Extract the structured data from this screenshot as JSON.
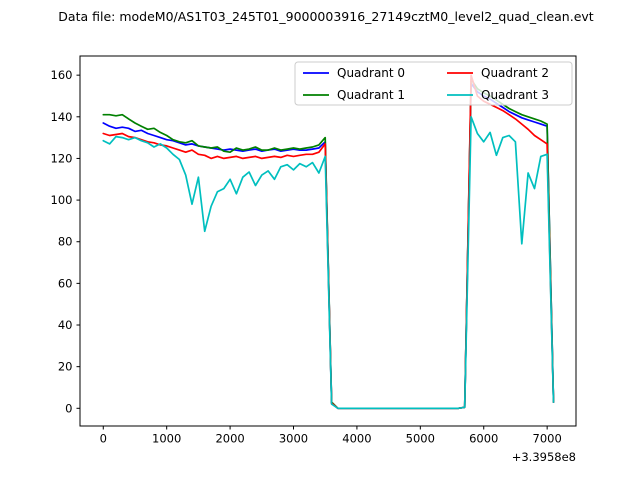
{
  "chart_data": {
    "type": "line",
    "title": "Data file: modeM0/AS1T03_245T01_9000003916_27149cztM0_level2_quad_clean.evt",
    "xlabel": "",
    "ylabel": "",
    "x_offset_label": "+3.3958e8",
    "xlim": [
      -367,
      7455
    ],
    "ylim": [
      -8.5,
      169.2
    ],
    "xticks": [
      0,
      1000,
      2000,
      3000,
      4000,
      5000,
      6000,
      7000
    ],
    "yticks": [
      0,
      20,
      40,
      60,
      80,
      100,
      120,
      140,
      160
    ],
    "grid": false,
    "legend": {
      "position": "upper right",
      "columns": 2,
      "border_color": "#cccccc",
      "background": "rgba(255,255,255,0.8)"
    },
    "x": [
      0,
      100,
      200,
      300,
      400,
      500,
      600,
      700,
      800,
      900,
      1000,
      1100,
      1200,
      1300,
      1400,
      1500,
      1600,
      1700,
      1800,
      1900,
      2000,
      2100,
      2200,
      2300,
      2400,
      2500,
      2600,
      2700,
      2800,
      2900,
      3000,
      3100,
      3200,
      3300,
      3400,
      3500,
      3600,
      3700,
      3800,
      3900,
      4000,
      4100,
      4200,
      4300,
      4400,
      4500,
      4600,
      4700,
      4800,
      4900,
      5000,
      5100,
      5200,
      5300,
      5400,
      5500,
      5600,
      5700,
      5800,
      5900,
      6000,
      6100,
      6200,
      6300,
      6400,
      6500,
      6600,
      6700,
      6800,
      6900,
      7000,
      7100
    ],
    "series": [
      {
        "name": "Quadrant 0",
        "color": "#0000ff",
        "values": [
          137,
          135.5,
          134.5,
          135,
          134.5,
          133,
          133.5,
          132,
          131,
          130,
          129,
          128.5,
          127.5,
          126.5,
          127,
          126,
          125.5,
          125,
          124.5,
          124,
          124.5,
          124,
          123.5,
          124,
          124.5,
          123.5,
          124,
          124.5,
          123.5,
          124,
          124.5,
          124,
          124,
          124.5,
          125,
          128,
          2.5,
          0,
          0,
          0,
          0,
          0,
          0,
          0,
          0,
          0,
          0,
          0,
          0,
          0,
          0,
          0,
          0,
          0,
          0,
          0,
          0,
          0.5,
          156,
          152,
          150,
          148.5,
          146.5,
          144.5,
          142.5,
          141,
          139.5,
          138.5,
          137.5,
          136.5,
          135.5,
          3
        ]
      },
      {
        "name": "Quadrant 1",
        "color": "#008000",
        "values": [
          141,
          141,
          140.5,
          141,
          139,
          137,
          135.5,
          134,
          134.5,
          132.5,
          131,
          129,
          128,
          127.5,
          128.5,
          126,
          125.5,
          125,
          125.5,
          123.5,
          123,
          125,
          124,
          124.5,
          125.5,
          124,
          124,
          125,
          124,
          124.5,
          125,
          124.5,
          125,
          125.5,
          126.5,
          130,
          3,
          0,
          0,
          0,
          0,
          0,
          0,
          0,
          0,
          0,
          0,
          0,
          0,
          0,
          0,
          0,
          0,
          0,
          0,
          0,
          0,
          0.5,
          158,
          153.5,
          151.5,
          150,
          148,
          146,
          144,
          142.5,
          141,
          140,
          139,
          138,
          136.5,
          3
        ]
      },
      {
        "name": "Quadrant 2",
        "color": "#ff0000",
        "values": [
          132,
          131,
          131.5,
          132,
          130.5,
          130,
          129,
          128,
          127.5,
          126.5,
          126,
          125,
          124,
          123,
          124,
          122,
          121.5,
          120,
          121,
          120,
          120.5,
          121,
          120,
          120.5,
          121,
          120,
          120.5,
          121,
          120.5,
          121.5,
          121,
          121.5,
          122,
          122,
          123,
          127,
          2.5,
          0,
          0,
          0,
          0,
          0,
          0,
          0,
          0,
          0,
          0,
          0,
          0,
          0,
          0,
          0,
          0,
          0,
          0,
          0,
          0,
          0.5,
          160,
          150,
          147.5,
          146,
          144.5,
          143,
          141,
          139,
          136.5,
          134,
          131,
          129,
          127,
          3
        ]
      },
      {
        "name": "Quadrant 3",
        "color": "#00bfbf",
        "values": [
          128.5,
          127,
          130.5,
          130,
          129,
          130,
          128.5,
          127.5,
          125.5,
          127,
          125,
          122,
          119.5,
          112,
          98,
          111,
          85,
          97,
          104,
          105.5,
          110,
          103,
          111,
          113.5,
          107,
          112,
          114,
          110,
          116,
          117,
          114.5,
          117.5,
          116,
          118,
          113,
          121,
          2,
          0,
          0,
          0,
          0,
          0,
          0,
          0,
          0,
          0,
          0,
          0,
          0,
          0,
          0,
          0,
          0,
          0,
          0,
          0,
          0,
          0.5,
          140,
          132,
          128,
          132.5,
          121.5,
          130,
          131,
          128,
          79,
          113,
          105.5,
          121,
          122,
          3
        ]
      }
    ]
  }
}
